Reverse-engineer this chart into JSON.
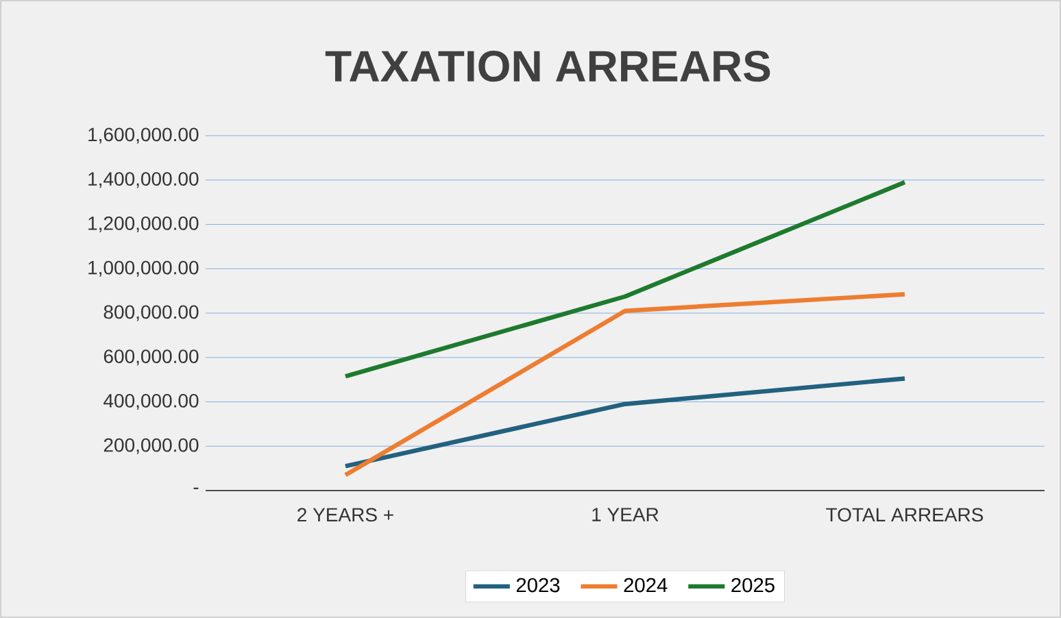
{
  "chart_data": {
    "type": "line",
    "title": "TAXATION ARREARS",
    "categories": [
      "2 YEARS +",
      "1 YEAR",
      "TOTAL ARREARS"
    ],
    "series": [
      {
        "name": "2023",
        "color": "#22617f",
        "values": [
          110000,
          390000,
          505000
        ]
      },
      {
        "name": "2024",
        "color": "#ed7d31",
        "values": [
          70000,
          810000,
          885000
        ]
      },
      {
        "name": "2025",
        "color": "#1e7a2e",
        "values": [
          515000,
          875000,
          1390000
        ]
      }
    ],
    "ylim": [
      0,
      1600000
    ],
    "yticks": [
      {
        "value": 0,
        "label": "-"
      },
      {
        "value": 200000,
        "label": "200,000.00"
      },
      {
        "value": 400000,
        "label": "400,000.00"
      },
      {
        "value": 600000,
        "label": "600,000.00"
      },
      {
        "value": 800000,
        "label": "800,000.00"
      },
      {
        "value": 1000000,
        "label": "1,000,000.00"
      },
      {
        "value": 1200000,
        "label": "1,200,000.00"
      },
      {
        "value": 1400000,
        "label": "1,400,000.00"
      },
      {
        "value": 1600000,
        "label": "1,600,000.00"
      }
    ],
    "grid": "y",
    "legend": "bottom",
    "marker": "none",
    "line_style": "solid"
  }
}
